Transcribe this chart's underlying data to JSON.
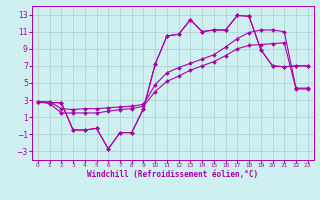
{
  "xlabel": "Windchill (Refroidissement éolien,°C)",
  "bg_color": "#cff0f0",
  "grid_color": "#a8d0d0",
  "line_color": "#aa00aa",
  "spine_color": "#aa00aa",
  "xlim": [
    -0.5,
    23.5
  ],
  "ylim": [
    -4,
    14
  ],
  "xticks": [
    0,
    1,
    2,
    3,
    4,
    5,
    6,
    7,
    8,
    9,
    10,
    11,
    12,
    13,
    14,
    15,
    16,
    17,
    18,
    19,
    20,
    21,
    22,
    23
  ],
  "yticks": [
    -3,
    -1,
    1,
    3,
    5,
    7,
    9,
    11,
    13
  ],
  "series": [
    [
      2.8,
      2.7,
      2.7,
      -0.5,
      -0.5,
      -0.3,
      -2.7,
      -0.8,
      -0.8,
      2.0,
      7.2,
      10.5,
      10.7,
      12.4,
      11.0,
      11.2,
      11.2,
      12.9,
      12.8,
      8.9,
      7.0,
      6.9,
      7.0,
      7.0
    ],
    [
      2.8,
      2.6,
      1.5,
      1.5,
      1.5,
      1.5,
      1.7,
      1.9,
      2.0,
      2.3,
      4.0,
      5.2,
      5.8,
      6.5,
      7.0,
      7.5,
      8.2,
      9.0,
      9.4,
      9.5,
      9.6,
      9.7,
      4.3,
      4.3
    ],
    [
      2.8,
      2.8,
      2.0,
      1.9,
      2.0,
      2.0,
      2.1,
      2.2,
      2.3,
      2.5,
      4.8,
      6.2,
      6.8,
      7.3,
      7.8,
      8.3,
      9.2,
      10.2,
      10.9,
      11.2,
      11.2,
      11.0,
      4.4,
      4.4
    ],
    [
      2.8,
      2.7,
      2.7,
      -0.5,
      -0.5,
      -0.3,
      -2.7,
      -0.8,
      -0.8,
      2.0,
      7.2,
      10.5,
      10.7,
      12.4,
      11.0,
      11.2,
      11.2,
      12.9,
      12.8,
      8.9,
      7.0,
      6.9,
      7.0,
      7.0
    ]
  ],
  "marker": "D",
  "markersize": 2.0,
  "linewidth": 0.8,
  "xlabel_fontsize": 5.5,
  "tick_fontsize_x": 4.2,
  "tick_fontsize_y": 5.5
}
